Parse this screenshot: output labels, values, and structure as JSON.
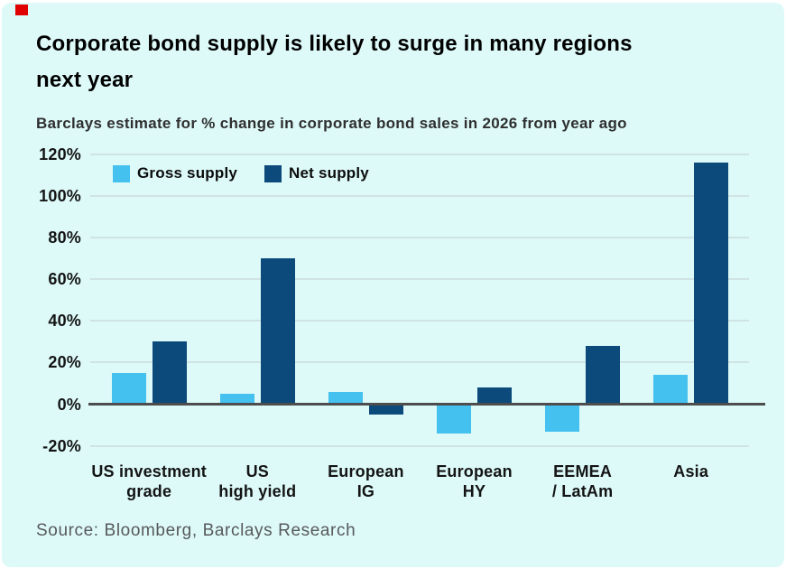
{
  "colors": {
    "card_background": "#ddfaf9",
    "red_mark": "#e00000",
    "gross": "#45c1f0",
    "net": "#0b4a7a",
    "gridline": "#cfe3e2",
    "zero_line": "#4d4d4d",
    "source_text": "#58595b"
  },
  "header": {
    "title_line1": "Corporate bond supply is likely to surge in many regions",
    "title_line2": "next year",
    "subtitle": "Barclays estimate for % change in corporate bond sales in 2026 from year ago"
  },
  "legend": {
    "items": [
      {
        "label": "Gross supply",
        "color": "#45c1f0"
      },
      {
        "label": "Net supply",
        "color": "#0b4a7a"
      }
    ]
  },
  "chart_data": {
    "type": "bar",
    "title": "Corporate bond supply is likely to surge in many regions next year",
    "subtitle": "Barclays estimate for % change in corporate bond sales in 2026 from year ago",
    "categories": [
      "US investment\ngrade",
      "US\nhigh yield",
      "European\nIG",
      "European\nHY",
      "EEMEA\n/ LatAm",
      "Asia"
    ],
    "series": [
      {
        "name": "Gross supply",
        "color": "#45c1f0",
        "values": [
          15,
          5,
          6,
          -14,
          -13,
          14
        ]
      },
      {
        "name": "Net supply",
        "color": "#0b4a7a",
        "values": [
          30,
          70,
          -5,
          8,
          28,
          116
        ]
      }
    ],
    "xlabel": "",
    "ylabel": "",
    "ylim": [
      -20,
      120
    ],
    "yticks": [
      120,
      100,
      80,
      60,
      40,
      20,
      0,
      -20
    ],
    "ytick_labels": [
      "120%",
      "100%",
      "80%",
      "60%",
      "40%",
      "20%",
      "0%",
      "-20%"
    ],
    "grid": true,
    "legend_position": "top-left"
  },
  "footer": {
    "source": "Source: Bloomberg, Barclays Research"
  }
}
